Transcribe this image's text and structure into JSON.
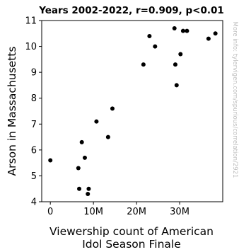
{
  "chart_data": {
    "type": "scatter",
    "title": "Years 2002-2022, r=0.909, p<0.01",
    "xlabel_lines": [
      "Viewership count of American",
      "Idol Season Finale"
    ],
    "ylabel": "Arson in Massachusetts",
    "watermark": "More info: tylervigen.com/spurious/correlation/2921",
    "xlim": [
      -2000000,
      40000000
    ],
    "ylim": [
      4,
      11
    ],
    "x_ticks": [
      {
        "value": 0,
        "label": "0"
      },
      {
        "value": 10000000,
        "label": "10M"
      },
      {
        "value": 20000000,
        "label": "20M"
      },
      {
        "value": 30000000,
        "label": "30M"
      }
    ],
    "y_ticks": [
      {
        "value": 4,
        "label": "4"
      },
      {
        "value": 5,
        "label": "5"
      },
      {
        "value": 6,
        "label": "6"
      },
      {
        "value": 7,
        "label": "7"
      },
      {
        "value": 8,
        "label": "8"
      },
      {
        "value": 9,
        "label": "9"
      },
      {
        "value": 10,
        "label": "10"
      },
      {
        "value": 11,
        "label": "11"
      }
    ],
    "points": [
      {
        "x": 0,
        "y": 5.6
      },
      {
        "x": 6500000,
        "y": 5.3
      },
      {
        "x": 6700000,
        "y": 4.5
      },
      {
        "x": 7300000,
        "y": 6.3
      },
      {
        "x": 8000000,
        "y": 5.7
      },
      {
        "x": 8700000,
        "y": 4.3
      },
      {
        "x": 8900000,
        "y": 4.5
      },
      {
        "x": 10700000,
        "y": 7.1
      },
      {
        "x": 13400000,
        "y": 6.5
      },
      {
        "x": 14400000,
        "y": 7.6
      },
      {
        "x": 21600000,
        "y": 9.3
      },
      {
        "x": 23000000,
        "y": 10.4
      },
      {
        "x": 24300000,
        "y": 10.0
      },
      {
        "x": 28800000,
        "y": 10.7
      },
      {
        "x": 29000000,
        "y": 9.3
      },
      {
        "x": 29300000,
        "y": 8.5
      },
      {
        "x": 30200000,
        "y": 9.7
      },
      {
        "x": 30800000,
        "y": 10.6
      },
      {
        "x": 31700000,
        "y": 10.6
      },
      {
        "x": 36700000,
        "y": 10.3
      },
      {
        "x": 38300000,
        "y": 10.5
      }
    ],
    "grid": false,
    "marker_color": "#000000"
  }
}
